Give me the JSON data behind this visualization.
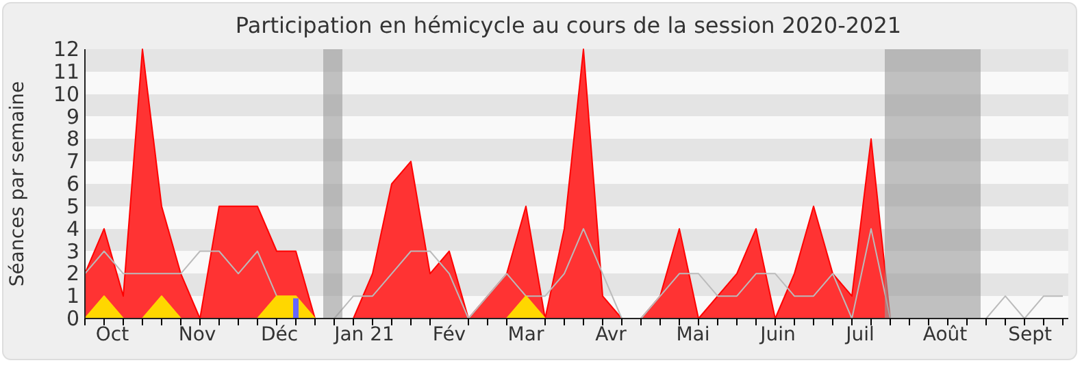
{
  "chart_data": {
    "type": "area",
    "title": "Participation en hémicycle au cours de la session 2020-2021",
    "ylabel": "Séances par semaine",
    "x": [
      "2020-09-21",
      "2020-09-28",
      "2020-10-05",
      "2020-10-12",
      "2020-10-19",
      "2020-10-26",
      "2020-11-02",
      "2020-11-09",
      "2020-11-16",
      "2020-11-23",
      "2020-11-30",
      "2020-12-07",
      "2020-12-14",
      "2020-12-21",
      "2020-12-28",
      "2021-01-04",
      "2021-01-11",
      "2021-01-18",
      "2021-01-25",
      "2021-02-01",
      "2021-02-08",
      "2021-02-15",
      "2021-02-22",
      "2021-03-01",
      "2021-03-08",
      "2021-03-15",
      "2021-03-22",
      "2021-03-29",
      "2021-04-05",
      "2021-04-12",
      "2021-04-19",
      "2021-04-26",
      "2021-05-03",
      "2021-05-10",
      "2021-05-17",
      "2021-05-24",
      "2021-05-31",
      "2021-06-07",
      "2021-06-14",
      "2021-06-21",
      "2021-06-28",
      "2021-07-05",
      "2021-07-12",
      "2021-07-19",
      "2021-07-26",
      "2021-08-02",
      "2021-08-09",
      "2021-08-16",
      "2021-08-23",
      "2021-08-30",
      "2021-09-06",
      "2021-09-13"
    ],
    "series": [
      {
        "color": "#ff3333",
        "values": [
          2,
          4,
          1,
          12,
          5,
          2,
          0,
          5,
          5,
          5,
          3,
          3,
          0,
          0,
          0,
          2,
          6,
          7,
          2,
          3,
          0,
          1,
          2,
          5,
          0,
          4,
          12,
          1,
          0,
          0,
          1,
          4,
          0,
          1,
          2,
          4,
          0,
          2,
          5,
          2,
          1,
          8,
          0,
          0,
          0,
          0,
          0,
          0,
          0,
          0,
          0,
          0
        ]
      },
      {
        "type": "line",
        "color": "#bbbbbb",
        "values": [
          2,
          3,
          2,
          2,
          2,
          2,
          3,
          3,
          2,
          3,
          1,
          null,
          0,
          0,
          1,
          1,
          2,
          3,
          3,
          2,
          0,
          1,
          2,
          1,
          1,
          2,
          4,
          2,
          0,
          0,
          1,
          2,
          2,
          1,
          1,
          2,
          2,
          1,
          1,
          2,
          0,
          4,
          0,
          0,
          0,
          0,
          0,
          0,
          1,
          0,
          1,
          1
        ]
      },
      {
        "type": "area",
        "color": "#ffd700",
        "values": [
          0,
          1,
          0,
          0,
          1,
          0,
          0,
          0,
          0,
          0,
          1,
          1,
          0,
          0,
          0,
          0,
          0,
          0,
          0,
          0,
          0,
          0,
          0,
          1,
          0,
          0,
          0,
          0,
          0,
          0,
          0,
          0,
          0,
          0,
          0,
          0,
          0,
          0,
          0,
          0,
          0,
          0,
          0,
          0,
          0,
          0,
          0,
          0,
          0,
          0,
          0,
          0
        ]
      },
      {
        "type": "bar",
        "color": "#6666ff",
        "x": [
          "2020-12-07"
        ],
        "values": [
          0.9
        ]
      }
    ],
    "xlim": [
      "2020-09-21",
      "2021-09-15"
    ],
    "xticks": [
      {
        "value": "2020-09-21",
        "label": null
      },
      {
        "value": "2020-09-28",
        "label": null
      },
      {
        "value": "2020-10-05",
        "label": null
      },
      {
        "value": "2020-10-12",
        "label": null
      },
      {
        "value": "2020-10-19",
        "label": null
      },
      {
        "value": "2020-10-26",
        "label": null
      },
      {
        "value": "2020-11-02",
        "label": null
      },
      {
        "value": "2020-11-09",
        "label": null
      },
      {
        "value": "2020-11-16",
        "label": null
      },
      {
        "value": "2020-11-23",
        "label": null
      },
      {
        "value": "2020-11-30",
        "label": null
      },
      {
        "value": "2020-12-07",
        "label": null
      },
      {
        "value": "2020-12-14",
        "label": null
      },
      {
        "value": "2020-12-21",
        "label": null
      },
      {
        "value": "2020-12-28",
        "label": null
      },
      {
        "value": "2021-01-04",
        "label": null
      },
      {
        "value": "2021-01-11",
        "label": null
      },
      {
        "value": "2021-01-18",
        "label": null
      },
      {
        "value": "2021-01-25",
        "label": null
      },
      {
        "value": "2021-02-08",
        "label": null
      },
      {
        "value": "2021-02-15",
        "label": null
      },
      {
        "value": "2021-02-22",
        "label": null
      },
      {
        "value": "2021-03-08",
        "label": null
      },
      {
        "value": "2021-03-15",
        "label": null
      },
      {
        "value": "2021-03-22",
        "label": null
      },
      {
        "value": "2021-03-29",
        "label": null
      },
      {
        "value": "2021-04-05",
        "label": null
      },
      {
        "value": "2021-04-12",
        "label": null
      },
      {
        "value": "2021-04-19",
        "label": null
      },
      {
        "value": "2021-04-26",
        "label": null
      },
      {
        "value": "2021-05-03",
        "label": null
      },
      {
        "value": "2021-05-10",
        "label": null
      },
      {
        "value": "2021-05-17",
        "label": null
      },
      {
        "value": "2021-05-24",
        "label": null
      },
      {
        "value": "2021-05-31",
        "label": null
      },
      {
        "value": "2021-06-07",
        "label": null
      },
      {
        "value": "2021-06-14",
        "label": null
      },
      {
        "value": "2021-06-21",
        "label": null
      },
      {
        "value": "2021-06-28",
        "label": null
      },
      {
        "value": "2021-07-05",
        "label": null
      },
      {
        "value": "2021-07-12",
        "label": null
      },
      {
        "value": "2021-07-19",
        "label": null
      },
      {
        "value": "2021-07-26",
        "label": null
      },
      {
        "value": "2021-08-02",
        "label": null
      },
      {
        "value": "2021-08-09",
        "label": null
      },
      {
        "value": "2021-08-16",
        "label": null
      },
      {
        "value": "2021-08-23",
        "label": null
      },
      {
        "value": "2021-08-30",
        "label": null
      },
      {
        "value": "2021-09-06",
        "label": null
      },
      {
        "value": "2021-09-13",
        "label": null
      },
      {
        "value": "2020-10-01",
        "label": "Oct"
      },
      {
        "value": "2020-11-01",
        "label": "Nov"
      },
      {
        "value": "2020-12-01",
        "label": "Déc"
      },
      {
        "value": "2021-01-01",
        "label": "Jan 21"
      },
      {
        "value": "2021-02-01",
        "label": "Fév"
      },
      {
        "value": "2021-03-01",
        "label": "Mar"
      },
      {
        "value": "2021-04-01",
        "label": "Avr"
      },
      {
        "value": "2021-05-01",
        "label": "Mai"
      },
      {
        "value": "2021-06-01",
        "label": "Juin"
      },
      {
        "value": "2021-07-01",
        "label": "Juil"
      },
      {
        "value": "2021-08-01",
        "label": "Août"
      },
      {
        "value": "2021-09-01",
        "label": "Sept"
      }
    ],
    "ylim": [
      0,
      12
    ],
    "yticks": [
      0,
      1,
      2,
      3,
      4,
      5,
      6,
      7,
      8,
      9,
      10,
      11,
      12
    ],
    "bands": [
      {
        "axis": "x",
        "from": "2020-12-17",
        "to": "2020-12-24",
        "color": "#999999"
      },
      {
        "axis": "x",
        "from": "2021-07-10",
        "to": "2021-08-14",
        "color": "#999999"
      }
    ],
    "marker": "none"
  }
}
